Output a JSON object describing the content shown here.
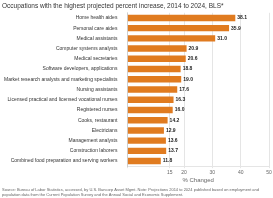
{
  "chart_data": {
    "type": "bar",
    "orientation": "horizontal",
    "title": "Occupations with the highest projected percent increase, 2014 to 2024, BLS*",
    "categories": [
      "Home health aides",
      "Personal care aides",
      "Medical assistants",
      "Computer systems analysts",
      "Medical secretaries",
      "Software developers, applications",
      "Market research analysts and marketing specialists",
      "Nursing assistants",
      "Licensed practical and licensed vocational nurses",
      "Registered nurses",
      "Cooks, restaurant",
      "Electricians",
      "Management analysts",
      "Construction laborers",
      "Combined food preparation and serving workers"
    ],
    "values": [
      38.1,
      35.9,
      31.0,
      20.9,
      20.6,
      18.8,
      19.0,
      17.6,
      16.3,
      16.0,
      14.2,
      12.9,
      13.6,
      13.7,
      11.8
    ],
    "value_labels": [
      "38.1",
      "35.9",
      "31.0",
      "20.9",
      "20.6",
      "18.8",
      "19.0",
      "17.6",
      "16.3",
      "16.0",
      "14.2",
      "12.9",
      "13.6",
      "13.7",
      "11.8"
    ],
    "data_labels": true,
    "color": "#E07B20",
    "xlabel": "% Changed",
    "xlim": [
      0,
      50
    ],
    "xticks": [
      {
        "value": 0,
        "label": ""
      },
      15,
      20,
      30,
      40,
      50
    ],
    "grid": true,
    "source": "Source: Bureau of Labor Statistics, accessed, by U.S. Bancorp Asset Mgmt. Note: Projections 2014 to 2024 published based on employment and population data from the Current Population Survey and the Annual Social and Economic Supplement."
  }
}
